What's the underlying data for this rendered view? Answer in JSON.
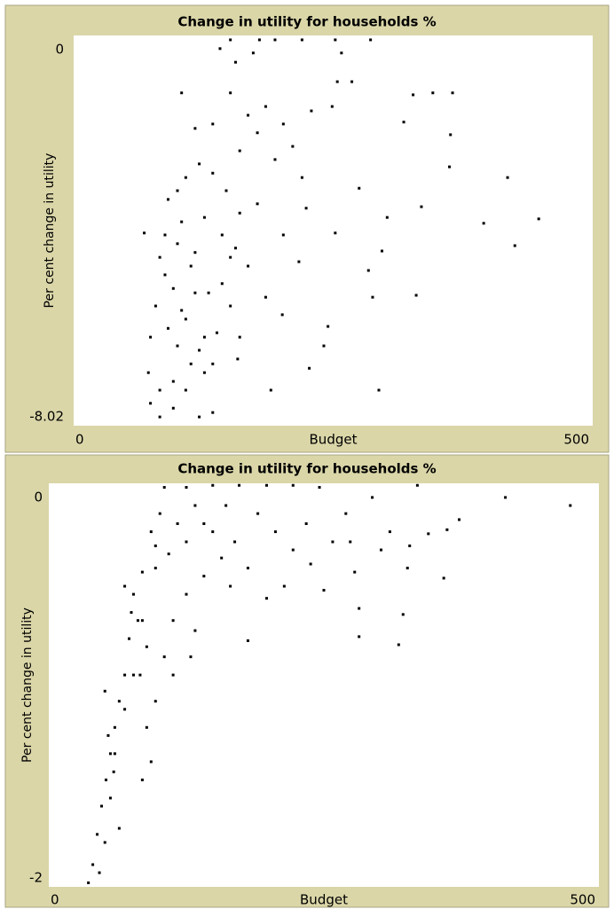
{
  "chart_data": [
    {
      "type": "scatter",
      "title": "Change in utility for households %",
      "x_label": "Budget",
      "y_label": "Per cent change in utility",
      "xlim": [
        0,
        500
      ],
      "ylim": [
        -8.02,
        0
      ],
      "xticks": [
        0,
        500
      ],
      "yticks": [
        -8.02,
        0
      ],
      "color": "#000000",
      "x": [
        68,
        448,
        425,
        418,
        395,
        365,
        346,
        327,
        363,
        362,
        335,
        330,
        294,
        227,
        190,
        158,
        288,
        284,
        297,
        302,
        318,
        275,
        254,
        268,
        286,
        252,
        220,
        194,
        179,
        151,
        252,
        245,
        241,
        224,
        202,
        217,
        201,
        185,
        177,
        194,
        211,
        229,
        168,
        151,
        134,
        121,
        108,
        100,
        83,
        79,
        74,
        72,
        74,
        83,
        96,
        108,
        121,
        134,
        126,
        113,
        100,
        91,
        104,
        117,
        130,
        143,
        151,
        138,
        126,
        113,
        100,
        88,
        104,
        126,
        143,
        156,
        168,
        160,
        147,
        134,
        160,
        177,
        185,
        202,
        220,
        173,
        156,
        141,
        117,
        104,
        91,
        88,
        96,
        108,
        121,
        83,
        96,
        134,
        117,
        249,
        258,
        151,
        160
      ],
      "values": [
        -4.06,
        -3.77,
        -4.32,
        -2.92,
        -3.86,
        -1.18,
        -1.18,
        -1.22,
        -2.04,
        -2.7,
        -3.52,
        -5.34,
        -7.29,
        -6.84,
        -7.29,
        -6.65,
        -5.38,
        -4.83,
        -4.43,
        -3.74,
        -1.78,
        -3.14,
        -0.95,
        -0.95,
        -0.09,
        -0.09,
        -0.09,
        -0.09,
        -0.09,
        -0.09,
        -4.06,
        -5.98,
        -6.38,
        -3.55,
        -4.1,
        -4.65,
        -5.74,
        -5.38,
        -3.46,
        -2.55,
        -2.28,
        -1.55,
        -1.64,
        -1.18,
        -1.82,
        -2.64,
        -2.92,
        -3.19,
        -4.56,
        -5.56,
        -6.2,
        -6.93,
        -7.56,
        -7.84,
        -7.66,
        -7.29,
        -7.84,
        -7.75,
        -6.93,
        -6.75,
        -6.38,
        -6.02,
        -5.65,
        -5.29,
        -5.29,
        -5.1,
        -5.56,
        -6.11,
        -6.2,
        -4.74,
        -4.28,
        -4.1,
        -3.83,
        -3.74,
        -4.1,
        -4.37,
        -4.74,
        -3.65,
        -3.19,
        -2.83,
        -2.37,
        -2,
        -1.46,
        -1.82,
        -2.92,
        -0.36,
        -0.55,
        -0.27,
        -1.91,
        -1.18,
        -3.37,
        -4.92,
        -5.2,
        -5.83,
        -6.47,
        -7.29,
        -7.11,
        -6.75,
        -4.46,
        -1.46,
        -0.36,
        -4.56,
        -6.2
      ]
    },
    {
      "type": "scatter",
      "title": "Change in utility for households %",
      "x_label": "Budget",
      "y_label": "Per cent change in utility",
      "xlim": [
        0,
        500
      ],
      "ylim": [
        -2,
        0
      ],
      "xticks": [
        0,
        500
      ],
      "yticks": [
        -2,
        0
      ],
      "color": "#000000",
      "x": [
        474,
        415,
        373,
        362,
        345,
        328,
        326,
        359,
        322,
        318,
        282,
        282,
        278,
        258,
        270,
        294,
        335,
        246,
        222,
        198,
        173,
        149,
        125,
        105,
        101,
        93,
        97,
        85,
        77,
        81,
        73,
        69,
        64,
        60,
        56,
        52,
        48,
        44,
        40,
        36,
        85,
        89,
        77,
        69,
        60,
        56,
        51,
        46,
        64,
        59,
        54,
        51,
        69,
        75,
        83,
        89,
        97,
        105,
        113,
        125,
        133,
        141,
        157,
        169,
        181,
        181,
        198,
        214,
        222,
        234,
        206,
        190,
        161,
        141,
        125,
        109,
        97,
        117,
        133,
        149,
        165,
        129,
        113,
        93,
        85,
        238,
        250,
        302,
        310,
        274
      ],
      "values": [
        -0.11,
        -0.07,
        -0.18,
        -0.23,
        -0.25,
        -0.31,
        -0.42,
        -0.47,
        -0.65,
        -0.8,
        -0.76,
        -0.62,
        -0.44,
        -0.29,
        -0.15,
        -0.07,
        -0.01,
        -0.02,
        -0.01,
        -0.01,
        -0.01,
        -0.01,
        -0.02,
        -0.02,
        -0.15,
        -0.24,
        -0.42,
        -0.44,
        -0.55,
        -0.68,
        -0.77,
        -0.95,
        -1.08,
        -1.21,
        -1.34,
        -1.47,
        -1.6,
        -1.74,
        -1.89,
        -1.98,
        -0.68,
        -0.81,
        -0.95,
        -1.12,
        -1.34,
        -1.56,
        -1.78,
        -1.93,
        -1.71,
        -1.43,
        -1.25,
        -1.03,
        -0.51,
        -0.64,
        -0.95,
        -1.21,
        -1.08,
        -0.86,
        -0.68,
        -0.55,
        -0.73,
        -0.46,
        -0.37,
        -0.29,
        -0.42,
        -0.78,
        -0.57,
        -0.51,
        -0.33,
        -0.2,
        -0.24,
        -0.15,
        -0.11,
        -0.2,
        -0.29,
        -0.35,
        -0.31,
        -0.2,
        -0.11,
        -0.24,
        -0.51,
        -0.86,
        -0.95,
        -1.38,
        -1.47,
        -0.4,
        -0.53,
        -0.33,
        -0.24,
        -0.29
      ]
    }
  ]
}
